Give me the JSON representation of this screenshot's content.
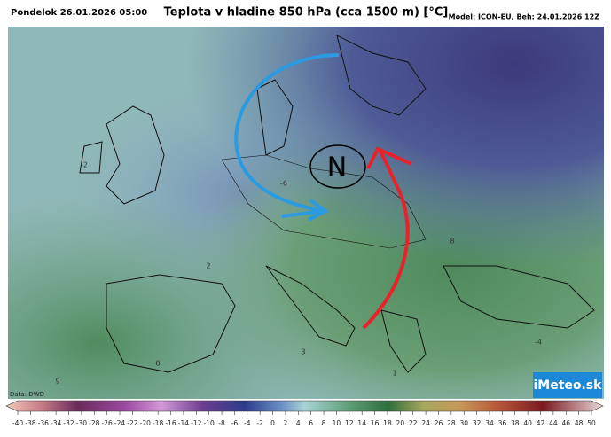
{
  "header": {
    "date": "Pondelok 26.01.2026 05:00",
    "title": "Teplota v hladine 850 hPa (cca 1500 m) [°C]",
    "model": "Model: ICON-EU, Beh: 24.01.2026 12Z"
  },
  "map": {
    "source": "Data: DWD",
    "logo": "iMeteo.sk",
    "pressure_label": "N",
    "values": [
      -2,
      -6,
      2,
      8,
      3,
      8,
      9,
      1,
      -4
    ]
  },
  "colorbar": {
    "ticks": [
      -40,
      -38,
      -36,
      -34,
      -32,
      -30,
      -28,
      -26,
      -24,
      -22,
      -20,
      -18,
      -16,
      -14,
      -12,
      -10,
      -8,
      -6,
      -4,
      -2,
      0,
      2,
      4,
      6,
      8,
      10,
      12,
      14,
      16,
      18,
      20,
      22,
      24,
      26,
      28,
      30,
      32,
      34,
      36,
      38,
      40,
      42,
      44,
      46,
      48,
      50
    ]
  }
}
